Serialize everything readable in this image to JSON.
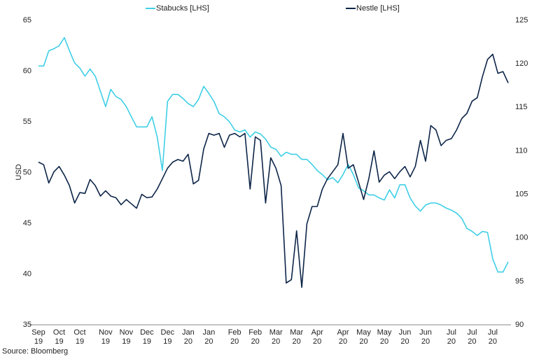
{
  "chart_data": {
    "type": "line",
    "ylabel": "USD",
    "source": "Source: Bloomberg",
    "categories": [
      "Sep 19",
      null,
      null,
      null,
      "Oct 19",
      null,
      null,
      null,
      "Oct 19",
      null,
      null,
      null,
      null,
      "Nov 19",
      null,
      null,
      null,
      "Nov 19",
      null,
      null,
      null,
      "Dec 19",
      null,
      null,
      null,
      "Dec 19",
      null,
      null,
      null,
      "Jan 20",
      null,
      null,
      null,
      "Jan 20",
      null,
      null,
      null,
      null,
      "Feb 20",
      null,
      null,
      null,
      "Feb 20",
      null,
      null,
      null,
      "Mar 20",
      null,
      null,
      null,
      "Mar 20",
      null,
      null,
      null,
      "Apr 20",
      null,
      null,
      null,
      null,
      "Apr 20",
      null,
      null,
      null,
      "May 20",
      null,
      null,
      null,
      "May 20",
      null,
      null,
      null,
      "Jun 20",
      null,
      null,
      null,
      "Jun 20",
      null,
      null,
      null,
      null,
      "Jul 20",
      null,
      null,
      null,
      "Jul 20",
      null,
      null,
      null,
      "Jul 20",
      null,
      null,
      null
    ],
    "series": [
      {
        "name": "Stabucks [LHS]",
        "color": "#3fcfe6",
        "axis": "y",
        "values": [
          60.5,
          60.5,
          62,
          62.2,
          62.5,
          63.3,
          62,
          60.8,
          60.3,
          59.5,
          60.2,
          59.5,
          58,
          56.5,
          58.2,
          57.5,
          57.2,
          56.5,
          55.5,
          54.5,
          54.5,
          54.5,
          55.5,
          53.5,
          50.2,
          57,
          57.7,
          57.7,
          57.3,
          56.8,
          56.5,
          57.2,
          58.5,
          57.8,
          57,
          55.8,
          55.5,
          55,
          54.2,
          54,
          54.2,
          53.5,
          54,
          53.8,
          53.3,
          52.5,
          52.3,
          51.6,
          52,
          51.8,
          51.8,
          51.3,
          51.3,
          50.8,
          50.2,
          49.8,
          49.3,
          49.5,
          49,
          49.8,
          50.8,
          49.8,
          48.5,
          48.2,
          47.8,
          47.8,
          47.5,
          47.3,
          48.3,
          47.5,
          48.8,
          48.8,
          47.5,
          46.7,
          46.2,
          46.8,
          47,
          47,
          46.8,
          46.5,
          46.3,
          46,
          45.5,
          44.5,
          44.2,
          43.8,
          44.2,
          44.1,
          41.5,
          40.2,
          40.2,
          41.2
        ]
      },
      {
        "name": "Nestle [LHS]",
        "color": "#0d2548",
        "axis": "y2",
        "values": [
          108.7,
          108.4,
          106.3,
          107.6,
          108.2,
          107.2,
          106,
          104,
          105.2,
          105.1,
          106.7,
          106,
          104.8,
          105.4,
          104.8,
          104.6,
          103.8,
          104.4,
          103.9,
          103.4,
          105,
          104.6,
          104.7,
          105.6,
          106.8,
          108,
          108.7,
          109,
          108.8,
          109.6,
          106.2,
          106.6,
          110.2,
          112,
          111.8,
          112,
          110.4,
          111.8,
          112,
          111.6,
          112,
          105.6,
          111.6,
          111.2,
          104,
          109.2,
          108,
          106,
          94.8,
          95.2,
          100.8,
          94.3,
          101.6,
          103.6,
          103.6,
          105.6,
          106.8,
          107.6,
          108.4,
          112,
          108,
          108.4,
          106.4,
          104.4,
          106.8,
          110,
          106.4,
          107.2,
          107.6,
          106.8,
          107.6,
          108.2,
          107,
          108.2,
          111.2,
          108.8,
          112.9,
          112.4,
          110.6,
          111.2,
          111.4,
          112.4,
          113.7,
          114.3,
          115.7,
          116.1,
          118.5,
          120.5,
          121.1,
          118.9,
          119.1,
          117.8
        ]
      }
    ],
    "ylim": [
      35,
      65
    ],
    "yticks": [
      35,
      40,
      45,
      50,
      55,
      60,
      65
    ],
    "y2lim": [
      90,
      125
    ],
    "y2ticks": [
      90,
      95,
      100,
      105,
      110,
      115,
      120,
      125
    ],
    "grid": false
  }
}
